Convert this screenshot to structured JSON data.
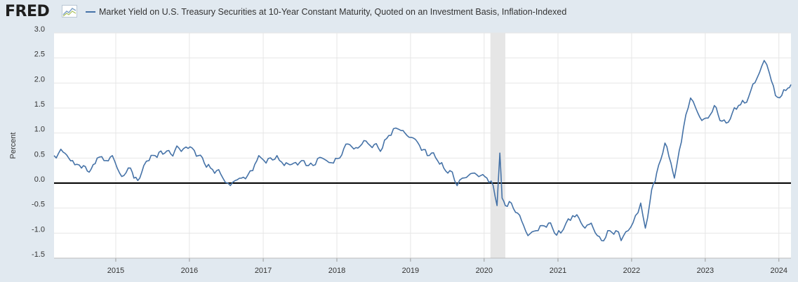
{
  "branding": {
    "logo_text": "FRED",
    "logo_mark_icon": "fred-chart-icon"
  },
  "chart_data": {
    "type": "line",
    "title": "",
    "xlabel": "",
    "ylabel": "Percent",
    "ylim": [
      -1.5,
      3.0
    ],
    "xlim": [
      "2014-03-01",
      "2024-03-01"
    ],
    "grid": true,
    "legend_placement": "top",
    "y_ticks": [
      "3.0",
      "2.5",
      "2.0",
      "1.5",
      "1.0",
      "0.5",
      "0.0",
      "-0.5",
      "-1.0",
      "-1.5"
    ],
    "x_ticks": [
      "2015",
      "2016",
      "2017",
      "2018",
      "2019",
      "2020",
      "2021",
      "2022",
      "2023",
      "2024"
    ],
    "reference_line": 0.0,
    "recession_shading": [
      [
        "2020-02-01",
        "2020-04-15"
      ]
    ],
    "colors": {
      "line": "#4572a7",
      "recession": "#e6e6e6",
      "zero_line": "#000000",
      "grid": "#e6e6e6"
    },
    "series": [
      {
        "name": "Market Yield on U.S. Treasury Securities at 10-Year Constant Maturity, Quoted on an Investment Basis, Inflation-Indexed",
        "points": [
          [
            "2014-03-01",
            0.55
          ],
          [
            "2014-04-15",
            0.62
          ],
          [
            "2014-06-01",
            0.45
          ],
          [
            "2014-07-15",
            0.3
          ],
          [
            "2014-09-01",
            0.28
          ],
          [
            "2014-10-01",
            0.5
          ],
          [
            "2014-11-15",
            0.45
          ],
          [
            "2014-12-15",
            0.55
          ],
          [
            "2015-01-20",
            0.2
          ],
          [
            "2015-02-10",
            0.15
          ],
          [
            "2015-03-15",
            0.3
          ],
          [
            "2015-04-01",
            0.1
          ],
          [
            "2015-04-20",
            0.05
          ],
          [
            "2015-05-20",
            0.35
          ],
          [
            "2015-06-15",
            0.45
          ],
          [
            "2015-07-15",
            0.55
          ],
          [
            "2015-09-01",
            0.6
          ],
          [
            "2015-10-01",
            0.58
          ],
          [
            "2015-11-10",
            0.7
          ],
          [
            "2015-12-15",
            0.72
          ],
          [
            "2016-01-15",
            0.7
          ],
          [
            "2016-02-15",
            0.55
          ],
          [
            "2016-03-15",
            0.4
          ],
          [
            "2016-04-15",
            0.3
          ],
          [
            "2016-05-15",
            0.25
          ],
          [
            "2016-06-15",
            0.1
          ],
          [
            "2016-07-10",
            0.0
          ],
          [
            "2016-08-15",
            0.05
          ],
          [
            "2016-09-15",
            0.1
          ],
          [
            "2016-10-15",
            0.15
          ],
          [
            "2016-11-10",
            0.25
          ],
          [
            "2016-12-10",
            0.55
          ],
          [
            "2017-01-15",
            0.4
          ],
          [
            "2017-03-10",
            0.55
          ],
          [
            "2017-04-15",
            0.35
          ],
          [
            "2017-06-01",
            0.4
          ],
          [
            "2017-07-10",
            0.45
          ],
          [
            "2017-09-05",
            0.35
          ],
          [
            "2017-10-20",
            0.5
          ],
          [
            "2017-12-15",
            0.4
          ],
          [
            "2018-01-15",
            0.5
          ],
          [
            "2018-02-15",
            0.78
          ],
          [
            "2018-04-15",
            0.7
          ],
          [
            "2018-05-15",
            0.85
          ],
          [
            "2018-06-15",
            0.75
          ],
          [
            "2018-08-15",
            0.7
          ],
          [
            "2018-09-15",
            0.95
          ],
          [
            "2018-10-20",
            1.1
          ],
          [
            "2018-11-15",
            1.05
          ],
          [
            "2018-12-15",
            0.95
          ],
          [
            "2019-01-15",
            0.9
          ],
          [
            "2019-02-15",
            0.75
          ],
          [
            "2019-03-25",
            0.55
          ],
          [
            "2019-04-15",
            0.6
          ],
          [
            "2019-05-15",
            0.45
          ],
          [
            "2019-06-15",
            0.3
          ],
          [
            "2019-07-15",
            0.25
          ],
          [
            "2019-08-20",
            -0.05
          ],
          [
            "2019-09-15",
            0.1
          ],
          [
            "2019-10-15",
            0.15
          ],
          [
            "2019-11-15",
            0.2
          ],
          [
            "2019-12-15",
            0.15
          ],
          [
            "2020-01-15",
            0.1
          ],
          [
            "2020-02-15",
            -0.05
          ],
          [
            "2020-03-05",
            -0.45
          ],
          [
            "2020-03-19",
            0.6
          ],
          [
            "2020-03-30",
            -0.3
          ],
          [
            "2020-04-15",
            -0.45
          ],
          [
            "2020-05-15",
            -0.4
          ],
          [
            "2020-06-15",
            -0.6
          ],
          [
            "2020-07-15",
            -0.85
          ],
          [
            "2020-08-05",
            -1.05
          ],
          [
            "2020-09-15",
            -0.95
          ],
          [
            "2020-10-15",
            -0.85
          ],
          [
            "2020-11-15",
            -0.8
          ],
          [
            "2020-12-15",
            -1.0
          ],
          [
            "2021-01-15",
            -1.0
          ],
          [
            "2021-02-10",
            -0.8
          ],
          [
            "2021-03-15",
            -0.65
          ],
          [
            "2021-04-15",
            -0.7
          ],
          [
            "2021-05-15",
            -0.9
          ],
          [
            "2021-06-15",
            -0.8
          ],
          [
            "2021-07-15",
            -1.05
          ],
          [
            "2021-08-05",
            -1.15
          ],
          [
            "2021-09-15",
            -0.95
          ],
          [
            "2021-10-15",
            -0.95
          ],
          [
            "2021-11-10",
            -1.15
          ],
          [
            "2021-12-15",
            -0.95
          ],
          [
            "2022-01-20",
            -0.65
          ],
          [
            "2022-02-15",
            -0.4
          ],
          [
            "2022-03-10",
            -0.9
          ],
          [
            "2022-04-01",
            -0.4
          ],
          [
            "2022-04-20",
            0.0
          ],
          [
            "2022-05-05",
            0.2
          ],
          [
            "2022-06-15",
            0.8
          ],
          [
            "2022-07-15",
            0.4
          ],
          [
            "2022-08-01",
            0.1
          ],
          [
            "2022-08-25",
            0.65
          ],
          [
            "2022-09-15",
            1.1
          ],
          [
            "2022-10-20",
            1.7
          ],
          [
            "2022-11-15",
            1.5
          ],
          [
            "2022-12-15",
            1.25
          ],
          [
            "2023-01-15",
            1.3
          ],
          [
            "2023-02-15",
            1.55
          ],
          [
            "2023-03-15",
            1.25
          ],
          [
            "2023-04-15",
            1.2
          ],
          [
            "2023-05-15",
            1.4
          ],
          [
            "2023-06-15",
            1.55
          ],
          [
            "2023-07-15",
            1.6
          ],
          [
            "2023-08-15",
            1.85
          ],
          [
            "2023-09-15",
            2.1
          ],
          [
            "2023-10-20",
            2.45
          ],
          [
            "2023-11-15",
            2.2
          ],
          [
            "2023-12-15",
            1.75
          ],
          [
            "2024-01-15",
            1.75
          ],
          [
            "2024-02-15",
            1.9
          ],
          [
            "2024-03-01",
            1.97
          ]
        ]
      }
    ]
  }
}
